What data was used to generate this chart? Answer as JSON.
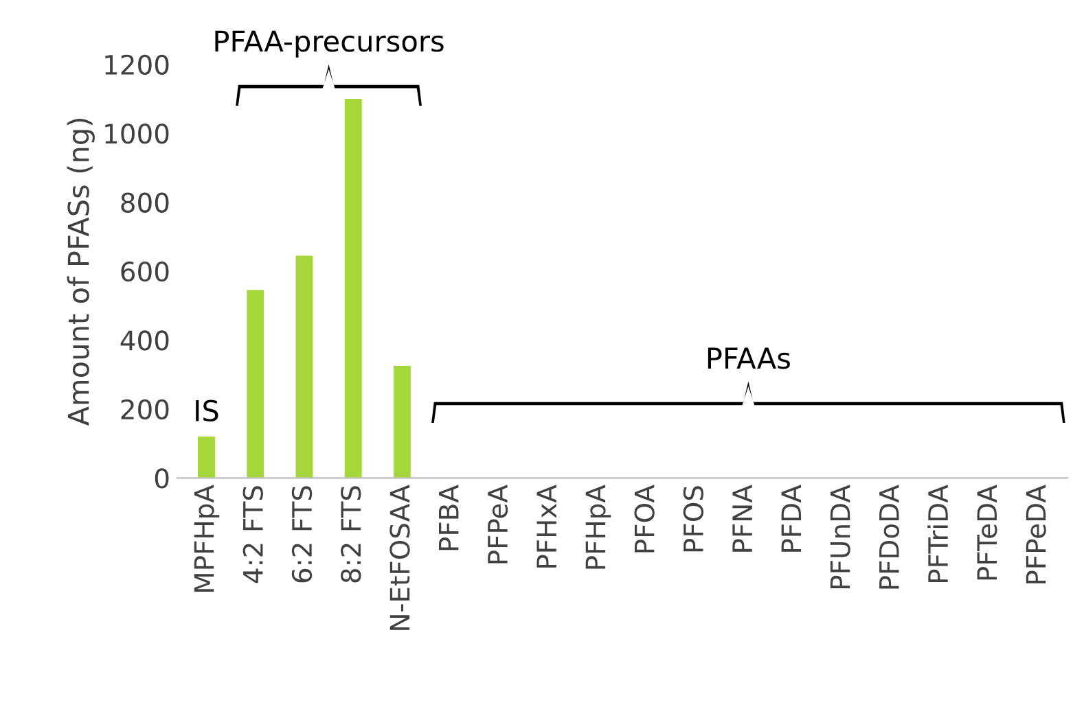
{
  "chart_data": {
    "type": "bar",
    "ylabel": "Amount of PFASs (ng)",
    "categories": [
      "MPFHpA",
      "4:2 FTS",
      "6:2 FTS",
      "8:2 FTS",
      "N-EtFOSAA",
      "PFBA",
      "PFPeA",
      "PFHxA",
      "PFHpA",
      "PFOA",
      "PFOS",
      "PFNA",
      "PFDA",
      "PFUnDA",
      "PFDoDA",
      "PFTriDA",
      "PFTeDA",
      "PFPeDA"
    ],
    "values": [
      120,
      545,
      645,
      1100,
      325,
      null,
      null,
      null,
      null,
      null,
      null,
      null,
      null,
      null,
      null,
      null,
      null,
      null
    ],
    "color": "#a5d63a",
    "ylim": [
      0,
      1200
    ],
    "yticks": [
      0,
      200,
      400,
      600,
      800,
      1000,
      1200
    ],
    "grid": false,
    "legend": false,
    "annotations": [
      {
        "text": "IS",
        "x": "MPFHpA",
        "y": 120
      },
      "PFAA-precursors",
      "PFAAs"
    ]
  }
}
